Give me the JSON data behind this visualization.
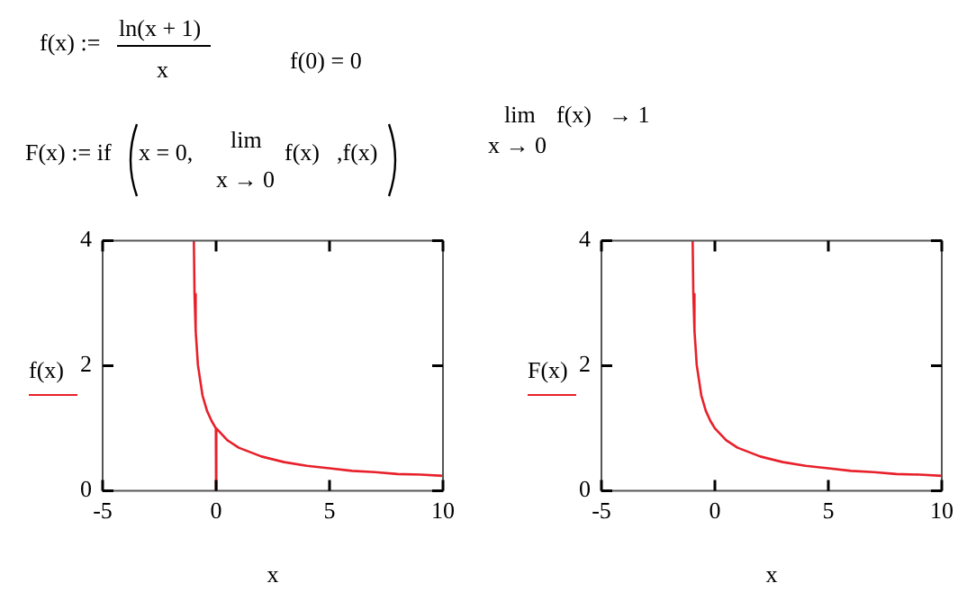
{
  "chart_data": [
    {
      "type": "other",
      "annotations": [
        "f(x) :=",
        "ln(x + 1)",
        "x",
        "f(0) = 0",
        "F(x) := if",
        "x = 0,",
        "lim",
        "x → 0",
        "f(x)",
        ",f(x)",
        "lim",
        "f(x)",
        "→ 1",
        "x → 0"
      ]
    },
    {
      "type": "line",
      "xlabel": "x",
      "xlim": [
        -5,
        10
      ],
      "xticks": [
        -5,
        0,
        5,
        10
      ],
      "ylim": [
        0,
        4
      ],
      "yticks": [
        0,
        2,
        4
      ],
      "grid": false,
      "legend": "left",
      "marker": "none",
      "line_style": "solid",
      "series": [
        {
          "name": "f(x)",
          "color": "#e8202a",
          "x": [
            -0.98,
            -0.95,
            -0.9,
            -0.8,
            -0.6,
            -0.4,
            -0.2,
            -0.01,
            0,
            0.01,
            0.5,
            1,
            2,
            3,
            4,
            5,
            6,
            7,
            8,
            9,
            10
          ],
          "values": [
            4.0,
            3.15,
            2.56,
            2.01,
            1.53,
            1.28,
            1.12,
            1.0,
            0,
            1.0,
            0.81,
            0.69,
            0.55,
            0.46,
            0.4,
            0.36,
            0.32,
            0.3,
            0.27,
            0.26,
            0.24
          ]
        }
      ]
    },
    {
      "type": "line",
      "xlabel": "x",
      "xlim": [
        -5,
        10
      ],
      "xticks": [
        -5,
        0,
        5,
        10
      ],
      "ylim": [
        0,
        4
      ],
      "yticks": [
        0,
        2,
        4
      ],
      "grid": false,
      "legend": "left",
      "marker": "none",
      "line_style": "solid",
      "series": [
        {
          "name": "F(x)",
          "color": "#e8202a",
          "x": [
            -0.98,
            -0.95,
            -0.9,
            -0.8,
            -0.6,
            -0.4,
            -0.2,
            0,
            0.5,
            1,
            2,
            3,
            4,
            5,
            6,
            7,
            8,
            9,
            10
          ],
          "values": [
            4.0,
            3.15,
            2.56,
            2.01,
            1.53,
            1.28,
            1.12,
            1.0,
            0.81,
            0.69,
            0.55,
            0.46,
            0.4,
            0.36,
            0.32,
            0.3,
            0.27,
            0.26,
            0.24
          ]
        }
      ]
    }
  ]
}
